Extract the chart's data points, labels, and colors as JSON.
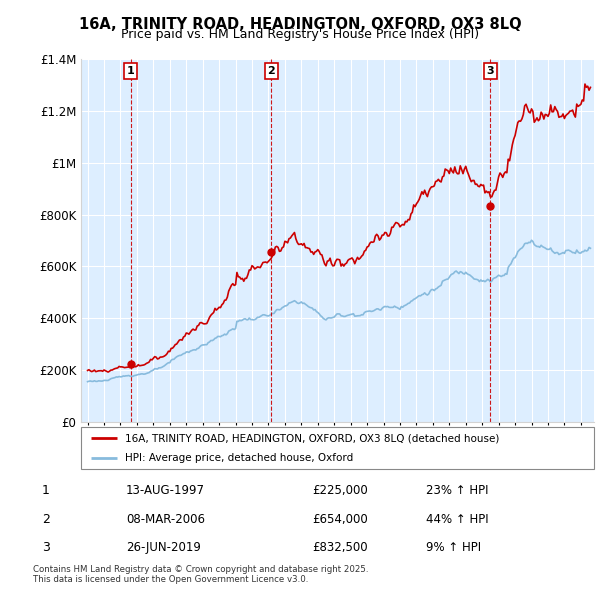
{
  "title1": "16A, TRINITY ROAD, HEADINGTON, OXFORD, OX3 8LQ",
  "title2": "Price paid vs. HM Land Registry's House Price Index (HPI)",
  "hpi_color": "#88bbdd",
  "price_color": "#cc0000",
  "bg_color": "#ddeeff",
  "transactions": [
    {
      "date_num": 1997.62,
      "price": 225000,
      "label": "1"
    },
    {
      "date_num": 2006.18,
      "price": 654000,
      "label": "2"
    },
    {
      "date_num": 2019.49,
      "price": 832500,
      "label": "3"
    }
  ],
  "transaction_dates": [
    "13-AUG-1997",
    "08-MAR-2006",
    "26-JUN-2019"
  ],
  "transaction_prices": [
    "£225,000",
    "£654,000",
    "£832,500"
  ],
  "transaction_hpi": [
    "23% ↑ HPI",
    "44% ↑ HPI",
    "9% ↑ HPI"
  ],
  "legend_label1": "16A, TRINITY ROAD, HEADINGTON, OXFORD, OX3 8LQ (detached house)",
  "legend_label2": "HPI: Average price, detached house, Oxford",
  "footnote": "Contains HM Land Registry data © Crown copyright and database right 2025.\nThis data is licensed under the Open Government Licence v3.0.",
  "ylim": [
    0,
    1400000
  ],
  "yticks": [
    0,
    200000,
    400000,
    600000,
    800000,
    1000000,
    1200000,
    1400000
  ],
  "ytick_labels": [
    "£0",
    "£200K",
    "£400K",
    "£600K",
    "£800K",
    "£1M",
    "£1.2M",
    "£1.4M"
  ],
  "xmin": 1994.6,
  "xmax": 2025.8
}
